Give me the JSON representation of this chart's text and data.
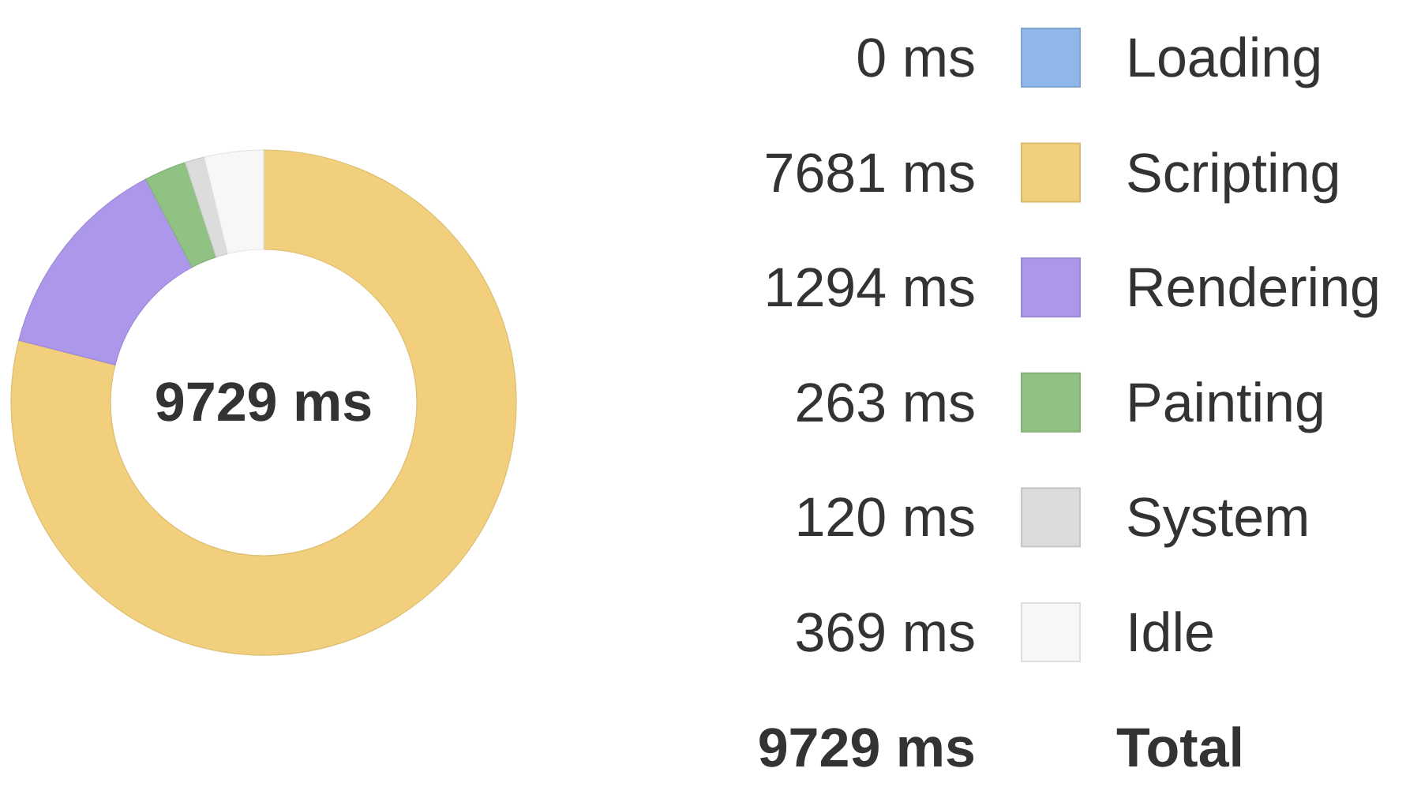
{
  "chart_data": {
    "type": "donut",
    "categories": [
      "Loading",
      "Scripting",
      "Rendering",
      "Painting",
      "System",
      "Idle"
    ],
    "values": [
      0,
      7681,
      1294,
      263,
      120,
      369
    ],
    "colors": [
      "#8fb7ea",
      "#f1cf7c",
      "#ad97eb",
      "#90c383",
      "#dcdcdc",
      "#f7f7f7"
    ],
    "value_labels": [
      "0 ms",
      "7681 ms",
      "1294 ms",
      "263 ms",
      "120 ms",
      "369 ms"
    ],
    "legend": "right",
    "annotations": [
      "9729 ms",
      "9729 ms",
      "Total"
    ]
  }
}
